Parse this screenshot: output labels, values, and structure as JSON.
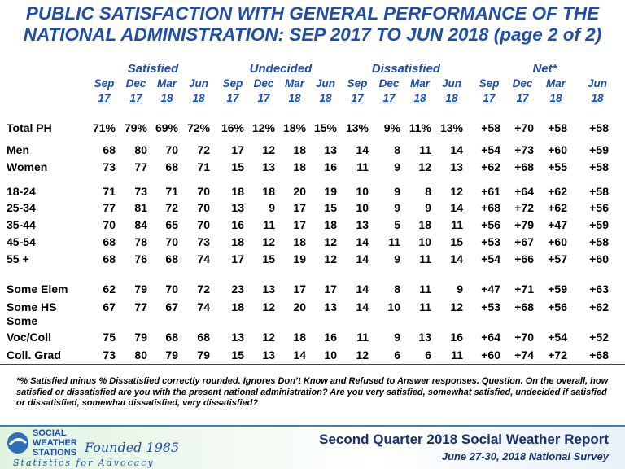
{
  "title": {
    "lines": [
      "PUBLIC SATISFACTION WITH GENERAL PERFORMANCE OF THE",
      "NATIONAL ADMINISTRATION: SEP 2017 TO JUN 2018 (page 2 of 2)"
    ]
  },
  "table": {
    "groups": [
      "Satisfied",
      "Undecided",
      "Dissatisfied",
      "Net*"
    ],
    "periods": [
      {
        "month": "Sep",
        "year": "17"
      },
      {
        "month": "Dec",
        "year": "17"
      },
      {
        "month": "Mar",
        "year": "18"
      },
      {
        "month": "Jun",
        "year": "18"
      }
    ],
    "rows": [
      {
        "label": "Total PH",
        "cells": [
          "71%",
          "79%",
          "69%",
          "72%",
          "16%",
          "12%",
          "18%",
          "15%",
          "13%",
          "9%",
          "11%",
          "13%",
          "+58",
          "+70",
          "+58",
          "+58"
        ]
      },
      {
        "label": "Men",
        "cells": [
          "68",
          "80",
          "70",
          "72",
          "17",
          "12",
          "18",
          "13",
          "14",
          "8",
          "11",
          "14",
          "+54",
          "+73",
          "+60",
          "+59"
        ]
      },
      {
        "label": "Women",
        "cells": [
          "73",
          "77",
          "68",
          "71",
          "15",
          "13",
          "18",
          "16",
          "11",
          "9",
          "12",
          "13",
          "+62",
          "+68",
          "+55",
          "+58"
        ]
      },
      {
        "label": "18-24",
        "cells": [
          "71",
          "73",
          "71",
          "70",
          "18",
          "18",
          "20",
          "19",
          "10",
          "9",
          "8",
          "12",
          "+61",
          "+64",
          "+62",
          "+58"
        ]
      },
      {
        "label": "25-34",
        "cells": [
          "77",
          "81",
          "72",
          "70",
          "13",
          "9",
          "17",
          "15",
          "10",
          "9",
          "9",
          "14",
          "+68",
          "+72",
          "+62",
          "+56"
        ]
      },
      {
        "label": "35-44",
        "cells": [
          "70",
          "84",
          "65",
          "70",
          "16",
          "11",
          "17",
          "18",
          "13",
          "5",
          "18",
          "11",
          "+56",
          "+79",
          "+47",
          "+59"
        ]
      },
      {
        "label": "45-54",
        "cells": [
          "68",
          "78",
          "70",
          "73",
          "18",
          "12",
          "18",
          "12",
          "14",
          "11",
          "10",
          "15",
          "+53",
          "+67",
          "+60",
          "+58"
        ]
      },
      {
        "label": "55 +",
        "cells": [
          "68",
          "76",
          "68",
          "74",
          "17",
          "15",
          "19",
          "12",
          "14",
          "9",
          "11",
          "14",
          "+54",
          "+66",
          "+57",
          "+60"
        ]
      },
      {
        "label": "Some Elem",
        "cells": [
          "62",
          "79",
          "70",
          "72",
          "23",
          "13",
          "17",
          "17",
          "14",
          "8",
          "11",
          "9",
          "+47",
          "+71",
          "+59",
          "+63"
        ]
      },
      {
        "label": "Some HS",
        "cells": [
          "67",
          "77",
          "67",
          "74",
          "18",
          "12",
          "20",
          "13",
          "14",
          "10",
          "11",
          "12",
          "+53",
          "+68",
          "+56",
          "+62"
        ]
      },
      {
        "label": "Some\nVoc/Coll",
        "cells": [
          "75",
          "79",
          "68",
          "68",
          "13",
          "12",
          "18",
          "16",
          "11",
          "9",
          "13",
          "16",
          "+64",
          "+70",
          "+54",
          "+52"
        ]
      },
      {
        "label": "Coll. Grad",
        "cells": [
          "73",
          "80",
          "79",
          "79",
          "15",
          "13",
          "14",
          "10",
          "12",
          "6",
          "6",
          "11",
          "+60",
          "+74",
          "+72",
          "+68"
        ]
      }
    ]
  },
  "footnote": "*% Satisfied minus % Dissatisfied correctly rounded. Ignores Don’t Know and Refused to Answer responses. Question. On the overall, how satisfied or dissatisfied are you with the present national administration? Are you very satisfied, somewhat satisfied, undecided if satisfied or dissatisfied, somewhat dissatisfied, very dissatisfied?",
  "footer": {
    "logo_lines": [
      "SOCIAL",
      "WEATHER",
      "STATIONS"
    ],
    "founded": "Founded 1985",
    "tagline": "Statistics for Advocacy",
    "report": "Second Quarter 2018 Social Weather Report",
    "survey": "June 27-30, 2018 National Survey"
  }
}
